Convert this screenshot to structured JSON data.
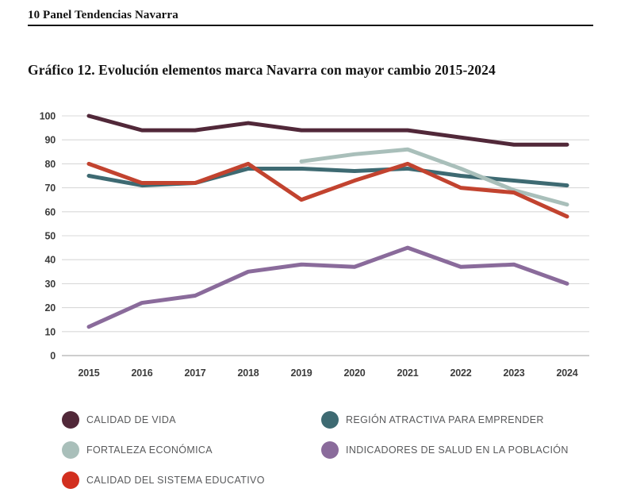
{
  "page": {
    "header": "10 Panel Tendencias Navarra"
  },
  "chart_data": {
    "type": "line",
    "title": "Gráfico 12. Evolución elementos marca Navarra con mayor cambio 2015-2024",
    "x": [
      "2015",
      "2016",
      "2017",
      "2018",
      "2019",
      "2020",
      "2021",
      "2022",
      "2023",
      "2024"
    ],
    "ylim": [
      0,
      100
    ],
    "ytick_step": 10,
    "grid": true,
    "legend_position": "bottom",
    "colors": {
      "gridline": "#d9d9d9",
      "zero_axis_line": "#bdbdbd",
      "axis_text": "#3b3b3b",
      "legend_text": "#58595b"
    },
    "series": [
      {
        "name": "CALIDAD DE VIDA",
        "color": "#512839",
        "values": [
          100,
          94,
          94,
          97,
          94,
          94,
          94,
          91,
          88,
          88
        ]
      },
      {
        "name": "REGIÓN ATRACTIVA PARA EMPRENDER",
        "color": "#3e6a72",
        "values": [
          75,
          71,
          72,
          78,
          78,
          77,
          78,
          75,
          73,
          71
        ]
      },
      {
        "name": "FORTALEZA ECONÓMICA",
        "color": "#a9bfba",
        "values": [
          null,
          null,
          null,
          null,
          81,
          84,
          86,
          78,
          69,
          63
        ]
      },
      {
        "name": "INDICADORES DE SALUD EN LA POBLACIÓN",
        "color": "#8a6b9b",
        "values": [
          12,
          22,
          25,
          35,
          38,
          37,
          45,
          37,
          38,
          30
        ]
      },
      {
        "name": "CALIDAD DEL SISTEMA EDUCATIVO",
        "color": "#c2432f",
        "legend_color": "#d22f1f",
        "values": [
          80,
          72,
          72,
          80,
          65,
          73,
          80,
          70,
          68,
          58
        ]
      }
    ]
  }
}
